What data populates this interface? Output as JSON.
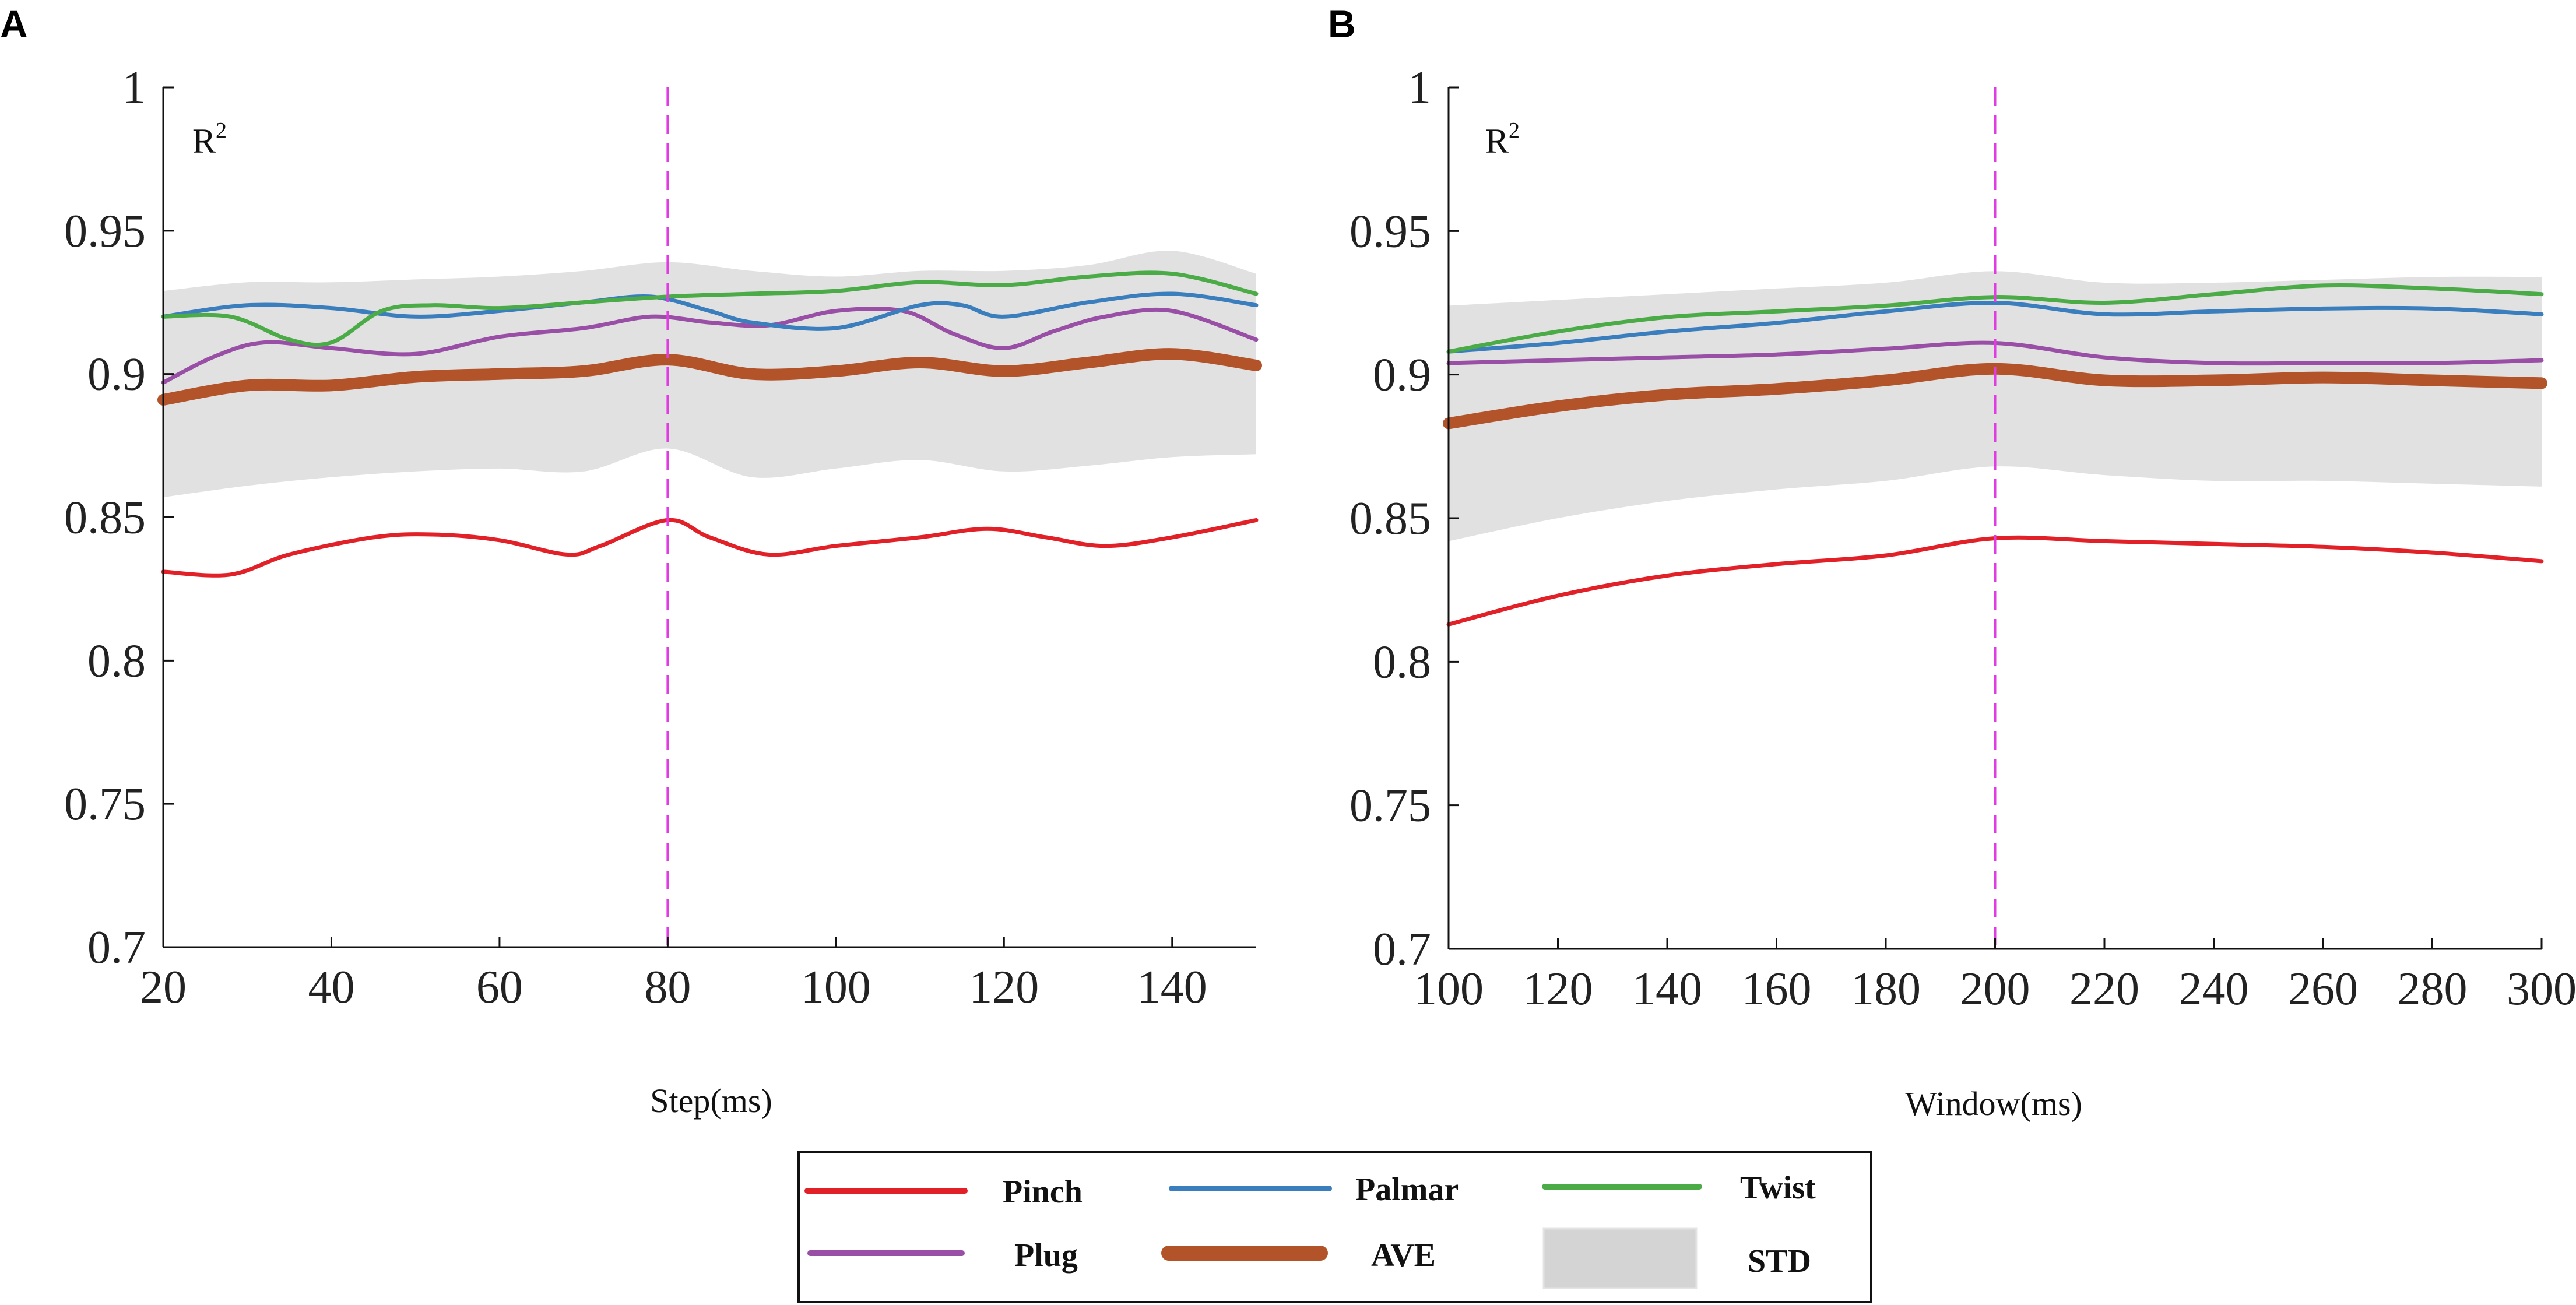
{
  "colors": {
    "Pinch": "#e12127",
    "Palmar": "#3a7ebd",
    "Twist": "#4bab47",
    "Plug": "#9a4fa6",
    "AVE": "#b3532a",
    "STD": "#d4d4d4",
    "marker": "#e13ce1"
  },
  "legend": {
    "items": [
      {
        "key": "Pinch",
        "label": "Pinch"
      },
      {
        "key": "Palmar",
        "label": "Palmar"
      },
      {
        "key": "Twist",
        "label": "Twist"
      },
      {
        "key": "Plug",
        "label": "Plug"
      },
      {
        "key": "AVE",
        "label": "AVE"
      },
      {
        "key": "STD",
        "label": "STD"
      }
    ]
  },
  "chart_data": [
    {
      "type": "line",
      "panel_label": "A",
      "title": "",
      "xlabel": "Step(ms)",
      "ylabel": "R",
      "ylabel_superscript": "2",
      "xlim": [
        20,
        150
      ],
      "ylim": [
        0.7,
        1.0
      ],
      "xticks": [
        20,
        40,
        60,
        80,
        100,
        120,
        140
      ],
      "xtick_labels": [
        "20",
        "40",
        "60",
        "80",
        "100",
        "120",
        "140"
      ],
      "yticks": [
        0.7,
        0.75,
        0.8,
        0.85,
        0.9,
        0.95,
        1.0
      ],
      "ytick_labels": [
        "0.7",
        "0.75",
        "0.8",
        "0.85",
        "0.9",
        "0.95",
        "1"
      ],
      "marker_x": 80,
      "series": [
        {
          "name": "Pinch",
          "x": [
            20,
            28,
            35,
            45,
            52,
            60,
            68,
            72,
            80,
            85,
            92,
            100,
            110,
            118,
            125,
            132,
            140,
            150
          ],
          "values": [
            0.831,
            0.83,
            0.837,
            0.843,
            0.844,
            0.842,
            0.837,
            0.84,
            0.849,
            0.843,
            0.837,
            0.84,
            0.843,
            0.846,
            0.843,
            0.84,
            0.843,
            0.849
          ]
        },
        {
          "name": "Palmar",
          "x": [
            20,
            30,
            40,
            50,
            60,
            70,
            78,
            85,
            90,
            100,
            110,
            115,
            120,
            130,
            140,
            150
          ],
          "values": [
            0.92,
            0.924,
            0.923,
            0.92,
            0.922,
            0.925,
            0.927,
            0.922,
            0.918,
            0.916,
            0.924,
            0.924,
            0.92,
            0.925,
            0.928,
            0.924
          ]
        },
        {
          "name": "Twist",
          "x": [
            20,
            28,
            35,
            40,
            46,
            52,
            60,
            70,
            80,
            90,
            100,
            110,
            120,
            130,
            140,
            150
          ],
          "values": [
            0.92,
            0.92,
            0.912,
            0.911,
            0.922,
            0.924,
            0.923,
            0.925,
            0.927,
            0.928,
            0.929,
            0.932,
            0.931,
            0.934,
            0.935,
            0.928
          ]
        },
        {
          "name": "Plug",
          "x": [
            20,
            26,
            32,
            40,
            50,
            60,
            70,
            78,
            85,
            92,
            100,
            108,
            114,
            120,
            126,
            132,
            140,
            150
          ],
          "values": [
            0.897,
            0.906,
            0.911,
            0.909,
            0.907,
            0.913,
            0.916,
            0.92,
            0.918,
            0.917,
            0.922,
            0.922,
            0.914,
            0.909,
            0.915,
            0.92,
            0.922,
            0.912
          ]
        },
        {
          "name": "AVE",
          "x": [
            20,
            30,
            40,
            50,
            60,
            70,
            80,
            90,
            100,
            110,
            120,
            130,
            140,
            150
          ],
          "values": [
            0.891,
            0.896,
            0.896,
            0.899,
            0.9,
            0.901,
            0.905,
            0.9,
            0.901,
            0.904,
            0.901,
            0.904,
            0.907,
            0.903
          ]
        },
        {
          "name": "STD",
          "x": [
            20,
            30,
            40,
            50,
            60,
            70,
            80,
            90,
            100,
            110,
            120,
            130,
            140,
            150
          ],
          "upper": [
            0.929,
            0.932,
            0.932,
            0.933,
            0.934,
            0.936,
            0.939,
            0.936,
            0.934,
            0.936,
            0.936,
            0.938,
            0.943,
            0.935
          ],
          "lower": [
            0.857,
            0.861,
            0.864,
            0.866,
            0.867,
            0.866,
            0.874,
            0.864,
            0.867,
            0.87,
            0.866,
            0.868,
            0.871,
            0.872
          ]
        }
      ]
    },
    {
      "type": "line",
      "panel_label": "B",
      "title": "",
      "xlabel": "Window(ms)",
      "ylabel": "R",
      "ylabel_superscript": "2",
      "xlim": [
        100,
        300
      ],
      "ylim": [
        0.7,
        1.0
      ],
      "xticks": [
        100,
        120,
        140,
        160,
        180,
        200,
        220,
        240,
        260,
        280,
        300
      ],
      "xtick_labels": [
        "100",
        "120",
        "140",
        "160",
        "180",
        "200",
        "220",
        "240",
        "260",
        "280",
        "300"
      ],
      "yticks": [
        0.7,
        0.75,
        0.8,
        0.85,
        0.9,
        0.95,
        1.0
      ],
      "ytick_labels": [
        "0.7",
        "0.75",
        "0.8",
        "0.85",
        "0.9",
        "0.95",
        "1"
      ],
      "marker_x": 200,
      "series": [
        {
          "name": "Pinch",
          "x": [
            100,
            120,
            140,
            160,
            180,
            200,
            220,
            240,
            260,
            280,
            300
          ],
          "values": [
            0.813,
            0.823,
            0.83,
            0.834,
            0.837,
            0.843,
            0.842,
            0.841,
            0.84,
            0.838,
            0.835
          ]
        },
        {
          "name": "Palmar",
          "x": [
            100,
            120,
            140,
            160,
            180,
            200,
            220,
            240,
            260,
            280,
            300
          ],
          "values": [
            0.908,
            0.911,
            0.915,
            0.918,
            0.922,
            0.925,
            0.921,
            0.922,
            0.923,
            0.923,
            0.921
          ]
        },
        {
          "name": "Twist",
          "x": [
            100,
            120,
            140,
            160,
            180,
            200,
            220,
            240,
            260,
            280,
            300
          ],
          "values": [
            0.908,
            0.915,
            0.92,
            0.922,
            0.924,
            0.927,
            0.925,
            0.928,
            0.931,
            0.93,
            0.928
          ]
        },
        {
          "name": "Plug",
          "x": [
            100,
            120,
            140,
            160,
            180,
            200,
            220,
            240,
            260,
            280,
            300
          ],
          "values": [
            0.904,
            0.905,
            0.906,
            0.907,
            0.909,
            0.911,
            0.906,
            0.904,
            0.904,
            0.904,
            0.905
          ]
        },
        {
          "name": "AVE",
          "x": [
            100,
            120,
            140,
            160,
            180,
            200,
            220,
            240,
            260,
            280,
            300
          ],
          "values": [
            0.883,
            0.889,
            0.893,
            0.895,
            0.898,
            0.902,
            0.898,
            0.898,
            0.899,
            0.898,
            0.897
          ]
        },
        {
          "name": "STD",
          "x": [
            100,
            120,
            140,
            160,
            180,
            200,
            220,
            240,
            260,
            280,
            300
          ],
          "upper": [
            0.924,
            0.926,
            0.928,
            0.93,
            0.932,
            0.936,
            0.932,
            0.932,
            0.933,
            0.934,
            0.934
          ],
          "lower": [
            0.842,
            0.85,
            0.856,
            0.86,
            0.863,
            0.868,
            0.865,
            0.863,
            0.863,
            0.862,
            0.861
          ]
        }
      ]
    }
  ]
}
